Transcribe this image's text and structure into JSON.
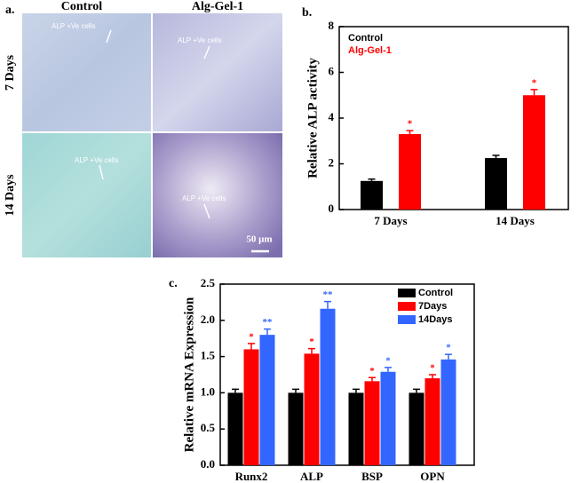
{
  "panel_a": {
    "label": "a.",
    "columns": [
      "Control",
      "Alg-Gel-1"
    ],
    "rows": [
      "7 Days",
      "14 Days"
    ],
    "annotations": [
      "ALP +Ve cells",
      "ALP +Ve cells",
      "ALP +Ve cells",
      "ALP +Ve cells"
    ],
    "scale_bar": "50 μm"
  },
  "chart_data": [
    {
      "type": "bar",
      "panel_label": "b.",
      "ylabel": "Relative ALP activity",
      "categories": [
        "7 Days",
        "14 Days"
      ],
      "series": [
        {
          "name": "Control",
          "color": "#000000",
          "values": [
            1.25,
            2.25
          ],
          "errors": [
            0.08,
            0.12
          ],
          "significance": [
            null,
            null
          ]
        },
        {
          "name": "Alg-Gel-1",
          "color": "#ff0000",
          "values": [
            3.3,
            5.0
          ],
          "errors": [
            0.15,
            0.25
          ],
          "significance": [
            "*",
            "*"
          ]
        }
      ],
      "ylim": [
        0,
        8
      ],
      "yticks": [
        0,
        2,
        4,
        6,
        8
      ],
      "legend": "upper left"
    },
    {
      "type": "bar",
      "panel_label": "c.",
      "ylabel": "Relative mRNA Expression",
      "categories": [
        "Runx2",
        "ALP",
        "BSP",
        "OPN"
      ],
      "series": [
        {
          "name": "Control",
          "color": "#000000",
          "values": [
            1.0,
            1.0,
            1.0,
            1.0
          ],
          "errors": [
            0.05,
            0.05,
            0.05,
            0.05
          ],
          "significance": [
            null,
            null,
            null,
            null
          ]
        },
        {
          "name": "7Days",
          "color": "#ff0000",
          "values": [
            1.6,
            1.54,
            1.16,
            1.2
          ],
          "errors": [
            0.08,
            0.07,
            0.05,
            0.05
          ],
          "significance": [
            "*",
            "*",
            "*",
            "*"
          ]
        },
        {
          "name": "14Days",
          "color": "#3366ff",
          "values": [
            1.8,
            2.16,
            1.29,
            1.46
          ],
          "errors": [
            0.08,
            0.1,
            0.06,
            0.07
          ],
          "significance": [
            "**",
            "**",
            "*",
            "*"
          ]
        }
      ],
      "ylim": [
        0,
        2.5
      ],
      "yticks": [
        {
          "value": 0,
          "label": "0.0"
        },
        0.5,
        {
          "value": 1,
          "label": "1.0"
        },
        1.5,
        {
          "value": 2,
          "label": "2.0"
        },
        2.5
      ],
      "legend": "upper right"
    }
  ]
}
